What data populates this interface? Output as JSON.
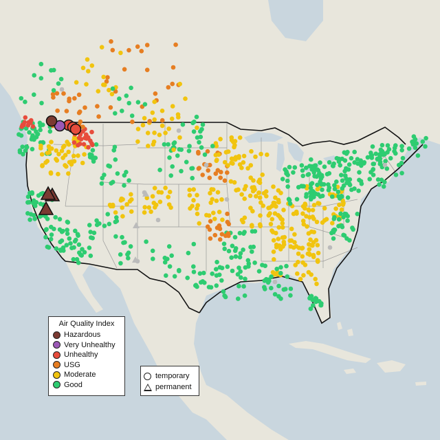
{
  "legend": {
    "title": "Air Quality Index",
    "items": [
      {
        "label": "Hazardous",
        "color": "#7b3a32"
      },
      {
        "label": "Very Unhealthy",
        "color": "#9b59b6"
      },
      {
        "label": "Unhealthy",
        "color": "#e74c3c"
      },
      {
        "label": "USG",
        "color": "#e67e22"
      },
      {
        "label": "Moderate",
        "color": "#f1c40f"
      },
      {
        "label": "Good",
        "color": "#2ecc71"
      }
    ]
  },
  "monitor_legend": {
    "items": [
      {
        "label": "temporary",
        "shape": "circle"
      },
      {
        "label": "permanent",
        "shape": "triangle"
      }
    ]
  },
  "colors": {
    "water": "#c9d6de",
    "land": "#e8e6dc",
    "no_data": "#bbbbbb"
  }
}
